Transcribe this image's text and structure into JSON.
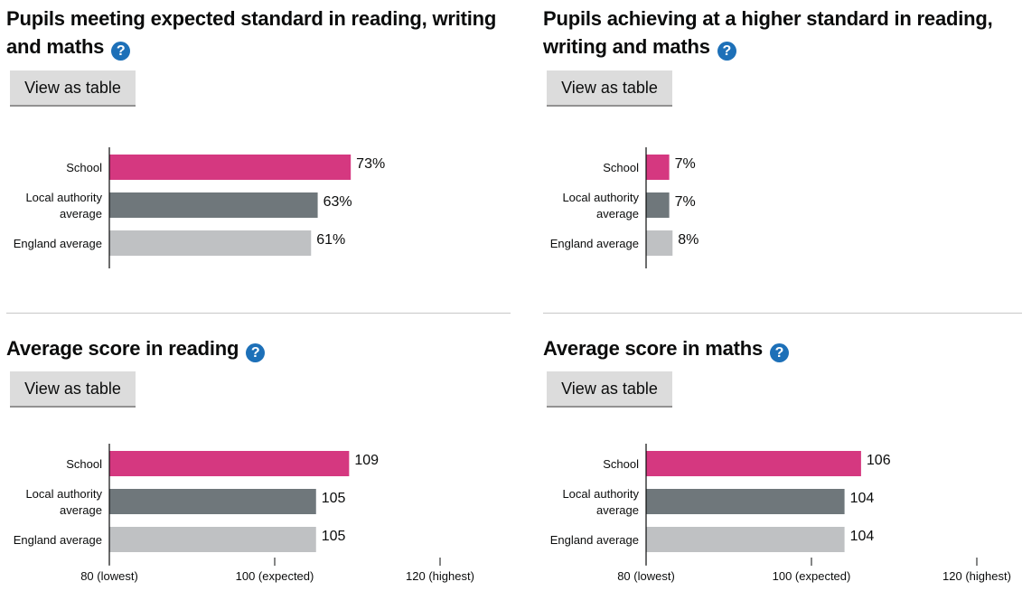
{
  "button_label": "View as table",
  "help_glyph": "?",
  "colors": {
    "school": "#d53880",
    "local": "#6f777b",
    "england": "#bfc1c3",
    "help": "#1d70b8"
  },
  "chart_data": [
    {
      "type": "bar",
      "title": "Pupils meeting expected standard in reading, writing and maths",
      "categories": [
        "School",
        "Local authority average",
        "England average"
      ],
      "category_lines": [
        [
          "School"
        ],
        [
          "Local authority",
          "average"
        ],
        [
          "England average"
        ]
      ],
      "values": [
        73,
        63,
        61
      ],
      "value_labels": [
        "73%",
        "63%",
        "61%"
      ],
      "xlim": [
        0,
        100
      ],
      "ticks": []
    },
    {
      "type": "bar",
      "title": "Pupils achieving at a higher standard in reading, writing and maths",
      "categories": [
        "School",
        "Local authority average",
        "England average"
      ],
      "category_lines": [
        [
          "School"
        ],
        [
          "Local authority",
          "average"
        ],
        [
          "England average"
        ]
      ],
      "values": [
        7,
        7,
        8
      ],
      "value_labels": [
        "7%",
        "7%",
        "8%"
      ],
      "xlim": [
        0,
        100
      ],
      "ticks": []
    },
    {
      "type": "bar",
      "title": "Average score in reading",
      "categories": [
        "School",
        "Local authority average",
        "England average"
      ],
      "category_lines": [
        [
          "School"
        ],
        [
          "Local authority",
          "average"
        ],
        [
          "England average"
        ]
      ],
      "values": [
        109,
        105,
        105
      ],
      "value_labels": [
        "109",
        "105",
        "105"
      ],
      "xlim": [
        80,
        120
      ],
      "ticks": [
        {
          "value": 80,
          "label": "80 (lowest)"
        },
        {
          "value": 100,
          "label": "100 (expected)"
        },
        {
          "value": 120,
          "label": "120 (highest)"
        }
      ]
    },
    {
      "type": "bar",
      "title": "Average score in maths",
      "categories": [
        "School",
        "Local authority average",
        "England average"
      ],
      "category_lines": [
        [
          "School"
        ],
        [
          "Local authority",
          "average"
        ],
        [
          "England average"
        ]
      ],
      "values": [
        106,
        104,
        104
      ],
      "value_labels": [
        "106",
        "104",
        "104"
      ],
      "xlim": [
        80,
        120
      ],
      "ticks": [
        {
          "value": 80,
          "label": "80 (lowest)"
        },
        {
          "value": 100,
          "label": "100 (expected)"
        },
        {
          "value": 120,
          "label": "120 (highest)"
        }
      ]
    }
  ]
}
